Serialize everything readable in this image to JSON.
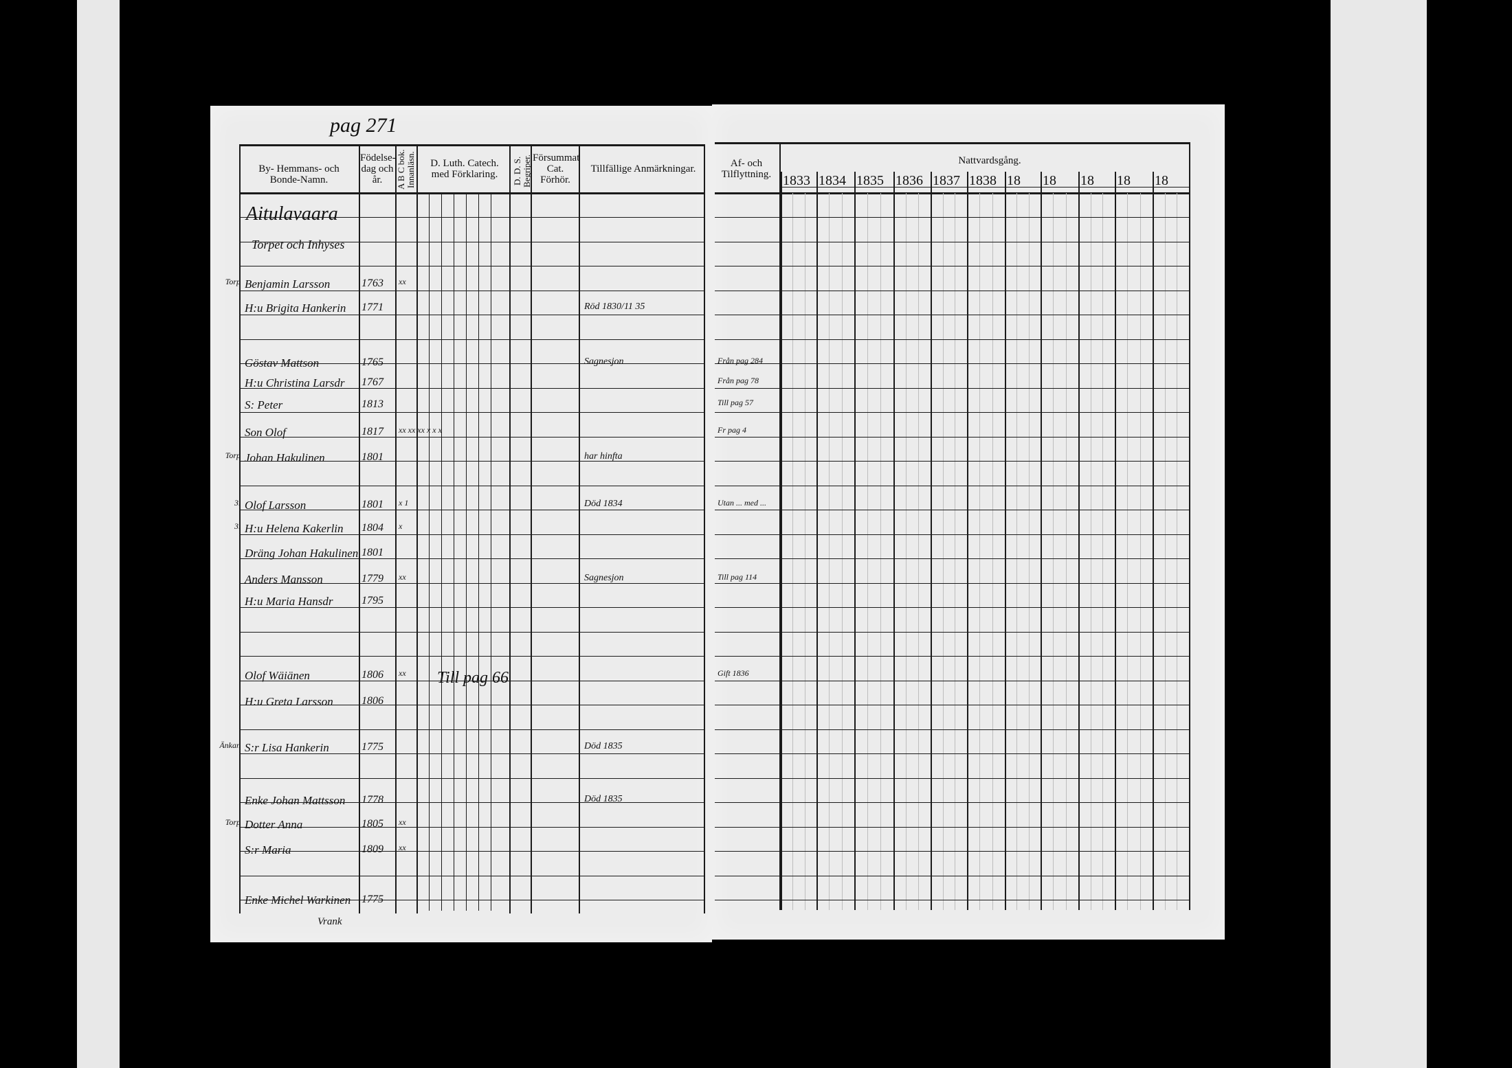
{
  "page_number": "pag 271",
  "left_headers": {
    "name": "By- Hemmans- och Bonde-Namn.",
    "birth": "Födelse-dag och år.",
    "abc": "A B C bok. Innanläsn.",
    "catech": "D. Luth. Catech. med Förklaring.",
    "dds": "D. D. S. Begriper.",
    "missed": "Försummat Cat. Förhör.",
    "remarks": "Tillfällige Anmärkningar."
  },
  "right_headers": {
    "moving": "Af- och Tilflyttning.",
    "communion": "Nattvardsgång.",
    "years": [
      "1833",
      "1834",
      "1835",
      "1836",
      "1837",
      "1838",
      "18",
      "18",
      "18",
      "18",
      "18"
    ]
  },
  "place_heading": "Aitulavaara",
  "sub_heading": "Torpet och Inhyses",
  "rows": [
    {
      "prefix": "Torp",
      "name": "Benjamin Larsson",
      "birth": "1763",
      "abc": "xx",
      "remark": "",
      "moving": ""
    },
    {
      "prefix": "",
      "name": "H:u Brigita Hankerin",
      "birth": "1771",
      "abc": "",
      "remark": "Röd 1830/11 35",
      "moving": ""
    },
    {
      "prefix": "",
      "name": "Göstav Mattson",
      "birth": "1765",
      "abc": "",
      "remark": "Sagnesjon",
      "moving": "Från pag 284"
    },
    {
      "prefix": "",
      "name": "H:u Christina Larsdr",
      "birth": "1767",
      "abc": "",
      "remark": "",
      "moving": "Från pag 78"
    },
    {
      "prefix": "",
      "name": "S: Peter",
      "birth": "1813",
      "abc": "",
      "remark": "",
      "moving": "Till pag 57"
    },
    {
      "prefix": "",
      "name": "Son Olof",
      "birth": "1817",
      "abc": "xx xx xx x x x",
      "remark": "",
      "moving": "Fr pag 4"
    },
    {
      "prefix": "Torp",
      "name": "Johan Hakulinen",
      "birth": "1801",
      "abc": "",
      "remark": "har hinfta",
      "moving": ""
    },
    {
      "prefix": "3.",
      "name": "Olof Larsson",
      "birth": "1801",
      "abc": "x 1",
      "remark": "Död 1834",
      "moving": "Utan ... med ..."
    },
    {
      "prefix": "3.",
      "name": "H:u Helena Kakerlin",
      "birth": "1804",
      "abc": "x",
      "remark": "",
      "moving": ""
    },
    {
      "prefix": "",
      "name": "Dräng Johan Hakulinen",
      "birth": "1801",
      "abc": "",
      "remark": "",
      "moving": ""
    },
    {
      "prefix": "",
      "name": "Anders Mansson",
      "birth": "1779",
      "abc": "xx",
      "remark": "Sagnesjon",
      "moving": "Till pag 114"
    },
    {
      "prefix": "",
      "name": "H:u Maria Hansdr",
      "birth": "1795",
      "abc": "",
      "remark": "",
      "moving": ""
    },
    {
      "prefix": "",
      "name": "Olof Wäiänen",
      "birth": "1806",
      "abc": "xx",
      "remark": "Till pag 66",
      "moving": "Gift 1836"
    },
    {
      "prefix": "",
      "name": "H:u Greta Larsson",
      "birth": "1806",
      "abc": "",
      "remark": "",
      "moving": ""
    },
    {
      "prefix": "Änkan",
      "name": "S:r Lisa Hankerin",
      "birth": "1775",
      "abc": "",
      "remark": "Död 1835",
      "moving": ""
    },
    {
      "prefix": "",
      "name": "Enke Johan Mattsson",
      "birth": "1778",
      "abc": "",
      "remark": "Död 1835",
      "moving": ""
    },
    {
      "prefix": "Torp",
      "name": "Dotter Anna",
      "birth": "1805",
      "abc": "xx",
      "remark": "",
      "moving": ""
    },
    {
      "prefix": "",
      "name": "S:r Maria",
      "birth": "1809",
      "abc": "xx",
      "remark": "",
      "moving": ""
    },
    {
      "prefix": "",
      "name": "Enke Michel Warkinen",
      "birth": "1775",
      "abc": "",
      "remark": "",
      "moving": ""
    }
  ],
  "footer_note": "Vrank"
}
